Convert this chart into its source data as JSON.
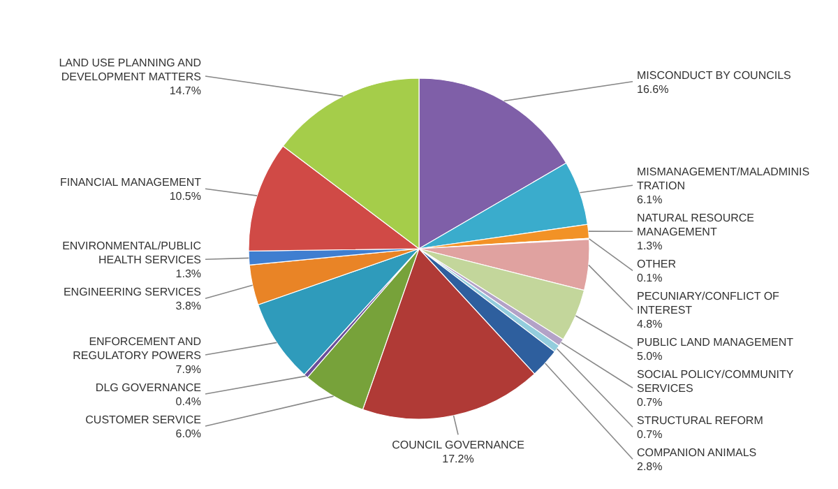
{
  "chart_data": {
    "type": "pie",
    "categories": [
      "MISCONDUCT BY COUNCILS",
      "MISMANAGEMENT/MALADMINISTRATION",
      "NATURAL RESOURCE MANAGEMENT",
      "OTHER",
      "PECUNIARY/CONFLICT OF INTEREST",
      "PUBLIC LAND MANAGEMENT",
      "SOCIAL POLICY/COMMUNITY SERVICES",
      "STRUCTURAL REFORM",
      "COMPANION ANIMALS",
      "COUNCIL GOVERNANCE",
      "CUSTOMER SERVICE",
      "DLG GOVERNANCE",
      "ENFORCEMENT AND REGULATORY POWERS",
      "ENGINEERING SERVICES",
      "ENVIRONMENTAL/PUBLIC HEALTH SERVICES",
      "FINANCIAL MANAGEMENT",
      "LAND USE PLANNING AND DEVELOPMENT MATTERS"
    ],
    "values": [
      16.6,
      6.1,
      1.3,
      0.1,
      4.8,
      5.0,
      0.7,
      0.7,
      2.8,
      17.2,
      6.0,
      0.4,
      7.9,
      3.8,
      1.3,
      10.5,
      14.7
    ],
    "value_labels": [
      "16.6%",
      "6.1%",
      "1.3%",
      "0.1%",
      "4.8%",
      "5.0%",
      "0.7%",
      "0.7%",
      "2.8%",
      "17.2%",
      "6.0%",
      "0.4%",
      "7.9%",
      "3.8%",
      "1.3%",
      "10.5%",
      "14.7%"
    ],
    "colors": [
      "#7f5fa8",
      "#3aaccc",
      "#f29226",
      "#e8e8e8",
      "#e0a2a0",
      "#c3d69b",
      "#b3a2c7",
      "#93cddd",
      "#2e5f9e",
      "#b03a36",
      "#77a23a",
      "#6b4e9a",
      "#2f9bbb",
      "#e98426",
      "#3f7ed0",
      "#d04a46",
      "#a5cd4a"
    ]
  }
}
